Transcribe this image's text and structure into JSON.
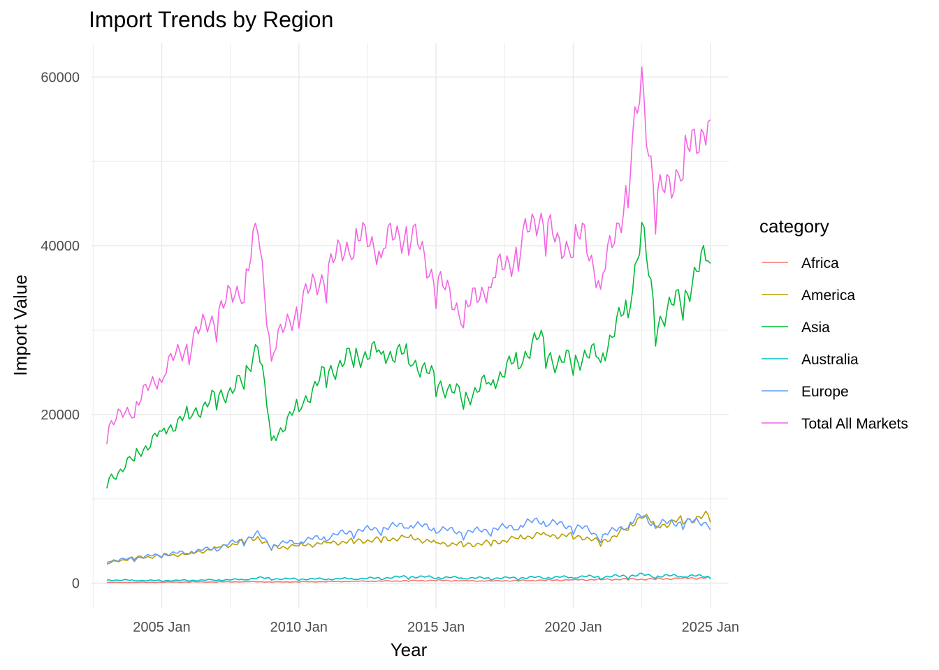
{
  "chart_data": {
    "type": "line",
    "title": "Import Trends by Region",
    "xlabel": "Year",
    "ylabel": "Import Value",
    "x_ticks": [
      "2005 Jan",
      "2010 Jan",
      "2015 Jan",
      "2020 Jan",
      "2025 Jan"
    ],
    "y_ticks": [
      "0",
      "20000",
      "40000",
      "60000"
    ],
    "ylim": [
      -3000,
      64000
    ],
    "xlim": [
      "2002-06",
      "2025-09"
    ],
    "grid": true,
    "legend_title": "category",
    "legend_position": "right",
    "x": [
      "2003-01",
      "2004-01",
      "2005-01",
      "2006-01",
      "2007-01",
      "2008-01",
      "2008-07",
      "2009-01",
      "2010-01",
      "2011-01",
      "2012-01",
      "2013-01",
      "2014-01",
      "2015-01",
      "2016-01",
      "2017-01",
      "2018-01",
      "2018-10",
      "2019-06",
      "2020-06",
      "2021-01",
      "2022-01",
      "2022-07",
      "2023-01",
      "2024-01",
      "2025-01"
    ],
    "series": [
      {
        "name": "Africa",
        "color": "#F8766D",
        "values": [
          100,
          110,
          130,
          150,
          160,
          180,
          190,
          150,
          170,
          200,
          230,
          260,
          300,
          350,
          300,
          280,
          320,
          350,
          380,
          420,
          450,
          500,
          480,
          520,
          600,
          650
        ]
      },
      {
        "name": "America",
        "color": "#B79F00",
        "values": [
          2500,
          3000,
          3300,
          3500,
          4200,
          5000,
          5500,
          4200,
          4500,
          4800,
          5000,
          5200,
          5500,
          4800,
          4600,
          4800,
          5400,
          5800,
          5700,
          5500,
          4800,
          6500,
          8200,
          6800,
          7500,
          8000
        ]
      },
      {
        "name": "Asia",
        "color": "#00BA38",
        "values": [
          12000,
          15000,
          18000,
          20000,
          22000,
          24000,
          29000,
          17000,
          21000,
          25000,
          27000,
          27500,
          27000,
          24000,
          22000,
          24000,
          26500,
          29000,
          26000,
          27000,
          27000,
          33000,
          42000,
          31000,
          34000,
          39500
        ]
      },
      {
        "name": "Australia",
        "color": "#00BFC4",
        "values": [
          400,
          350,
          320,
          350,
          400,
          450,
          650,
          550,
          500,
          520,
          550,
          620,
          800,
          700,
          650,
          600,
          650,
          700,
          700,
          800,
          750,
          900,
          1000,
          850,
          900,
          800
        ]
      },
      {
        "name": "Europe",
        "color": "#619CFF",
        "values": [
          2500,
          3000,
          3400,
          3700,
          4200,
          5200,
          5800,
          4500,
          5000,
          5500,
          6200,
          6500,
          7000,
          6500,
          6000,
          6400,
          6800,
          7500,
          7000,
          6500,
          5500,
          7000,
          8000,
          7000,
          7300,
          7200
        ]
      },
      {
        "name": "Total All Markets",
        "color": "#F564E3",
        "values": [
          18500,
          21000,
          25000,
          28500,
          32000,
          35500,
          42000,
          27500,
          33000,
          37000,
          41000,
          40000,
          42000,
          36000,
          32000,
          36000,
          39500,
          44000,
          40000,
          41000,
          35500,
          47000,
          60000,
          45000,
          50000,
          55500
        ]
      }
    ]
  }
}
